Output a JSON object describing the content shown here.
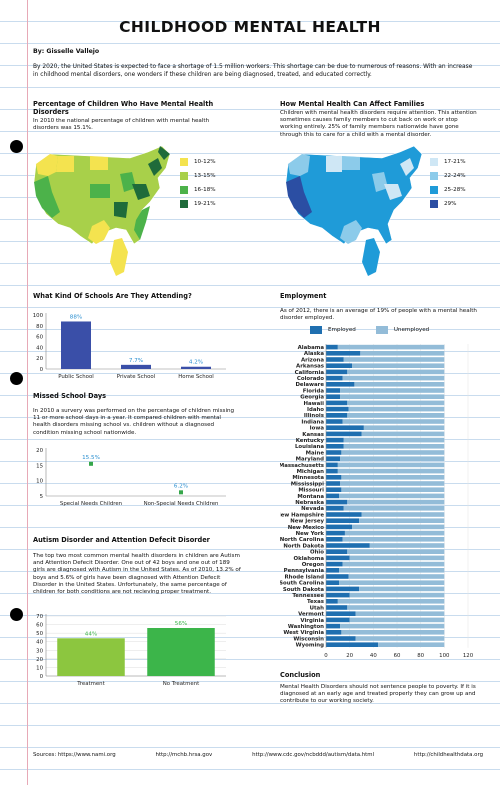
{
  "title": "CHILDHOOD MENTAL HEALTH",
  "byline": "By: Gisselle Vallejo",
  "intro": "By 2020, the United States is expected to  face a shortage of 1.5  million workers. This shortage can be due to numerous of reasons. With an increase in childhood mental disorders, one wonders if these children are being diagnosed, treated, and educated correctly.",
  "colors": {
    "green_light": "#f4e34f",
    "green_2": "#a8d04a",
    "green_3": "#4cb24a",
    "green_4": "#1f6b3a",
    "blue_1": "#cfe7f5",
    "blue_2": "#8ccbea",
    "blue_3": "#1f9bd8",
    "blue_4": "#2b4ea3",
    "employed": "#1f6fb0",
    "unemployed": "#93bcd8",
    "school_bar": "#3a4fa8"
  },
  "sections": {
    "percentage": {
      "title": "Percentage of Children Who Have Mental Health Disorders",
      "text": "In 2010 the national percentage of children with mental health disorders was 15.1%.",
      "legend": [
        "10-12%",
        "13-15%",
        "16-18%",
        "19-21%"
      ]
    },
    "families": {
      "title": "How Mental Health Can Affect Families",
      "text": "Children with mental health disorders require attention. This attention sometimes causes family members to cut back on work or stop working entirely. 25% of family members nationwide have gone through this to care for a child with a mental disorder.",
      "legend": [
        "17-21%",
        "22-24%",
        "25-28%",
        "29%"
      ]
    },
    "schools": {
      "title": "What Kind Of Schools Are They Attending?"
    },
    "missing": {
      "title": "Missed School Days",
      "text": "In 2010 a survery was performed on the percentage of children missing 11 or more school days in a year. It compared children with mental health disorders missing school vs. children without a diagnosed condition missing school nationwide."
    },
    "autism": {
      "title": "Autism Disorder and Attention Defecit Disorder",
      "text": "The top two most common mental health disorders in children are Autism and Attention Defecit Disorder. One out of 42 boys and one out of 189 girls are diagnosed with Autism in the United States. As of 2010, 13.2% of boys and 5.6% of girls have been diagnosed with Attention Defecit Disorder in the United States. Unfortunately, the same percentage of children for both conditions are not recieving proper treatment."
    },
    "employment": {
      "title": "Employment",
      "text": "As of 2012, there is an average of 19% of people with a mental health disorder employed.",
      "legend_employed": "Employed",
      "legend_unemployed": "Unemployed"
    },
    "conclusion": {
      "title": "Conclusion",
      "text": "Mental Health Disorders should not sentence people to poverty. If it is diagnosed at an early age and treated properly they can grow up and contribute to our working society."
    }
  },
  "sources": [
    "Sources: https://www.nami.org",
    "http://mchb.hrsa.gov",
    "http://www.cdc.gov/ncbddd/autism/data.html",
    "http://childhealthdata.org"
  ],
  "chart_data": [
    {
      "type": "bar",
      "categories": [
        "Public School",
        "Private School",
        "Home School"
      ],
      "values": [
        88,
        7.7,
        4.2
      ],
      "labels": [
        "88%",
        "7.7%",
        "4.2%"
      ],
      "yticks": [
        "0",
        "20",
        "40",
        "60",
        "80",
        "100"
      ],
      "ylim": [
        0,
        100
      ]
    },
    {
      "type": "scatter",
      "categories": [
        "Special Needs Children",
        "Non-Special Needs Children"
      ],
      "values": [
        15.5,
        6.2
      ],
      "labels": [
        "15.5%",
        "6.2%"
      ],
      "yticks": [
        "5",
        "10",
        "15",
        "20"
      ],
      "ylim": [
        5,
        20
      ]
    },
    {
      "type": "bar",
      "categories": [
        "Treatment",
        "No Treatment"
      ],
      "values": [
        44,
        56
      ],
      "labels": [
        "44%",
        "56%"
      ],
      "yticks": [
        "0",
        "10",
        "20",
        "30",
        "40",
        "50",
        "60",
        "70"
      ],
      "ylim": [
        0,
        70
      ]
    },
    {
      "type": "bar",
      "orientation": "horizontal-stacked",
      "categories": [
        "Alabama",
        "Alaska",
        "Arizona",
        "Arkansas",
        "California",
        "Colorado",
        "Delaware",
        "Florida",
        "Georgia",
        "Hawaii",
        "Idaho",
        "Illinois",
        "Indiana",
        "Iowa",
        "Kansas",
        "Kentucky",
        "Louisiana",
        "Maine",
        "Maryland",
        "Massachusetts",
        "Michigan",
        "Minnesota",
        "Mississippi",
        "Missouri",
        "Montana",
        "Nebraska",
        "Nevada",
        "New Hampshire",
        "New Jersey",
        "New Mexico",
        "New York",
        "North Carolina",
        "North Dakota",
        "Ohio",
        "Oklahoma",
        "Oregon",
        "Pennsylvania",
        "Rhode Island",
        "South Carolina",
        "South Dakota",
        "Tennessee",
        "Texas",
        "Utah",
        "Vermont",
        "Virginia",
        "Washington",
        "West Virginia",
        "Wisconsin",
        "Wyoming"
      ],
      "series": [
        {
          "name": "Employed",
          "values": [
            10,
            29,
            15,
            22,
            18,
            14,
            24,
            12,
            12,
            18,
            19,
            18,
            14,
            32,
            30,
            15,
            15,
            13,
            12,
            10,
            10,
            13,
            12,
            13,
            11,
            18,
            15,
            30,
            28,
            22,
            16,
            14,
            37,
            18,
            20,
            14,
            11,
            19,
            11,
            28,
            20,
            10,
            18,
            25,
            20,
            12,
            13,
            25,
            44
          ]
        },
        {
          "name": "Unemployed",
          "values": [
            90,
            71,
            85,
            78,
            82,
            86,
            76,
            88,
            88,
            82,
            81,
            82,
            86,
            68,
            70,
            85,
            85,
            87,
            88,
            90,
            90,
            87,
            88,
            87,
            89,
            82,
            85,
            70,
            72,
            78,
            84,
            86,
            63,
            82,
            80,
            86,
            89,
            81,
            89,
            72,
            80,
            90,
            82,
            75,
            80,
            88,
            87,
            75,
            56
          ]
        }
      ],
      "xticks": [
        "0",
        "20",
        "40",
        "60",
        "80",
        "100",
        "120"
      ],
      "xlim": [
        0,
        120
      ]
    }
  ]
}
